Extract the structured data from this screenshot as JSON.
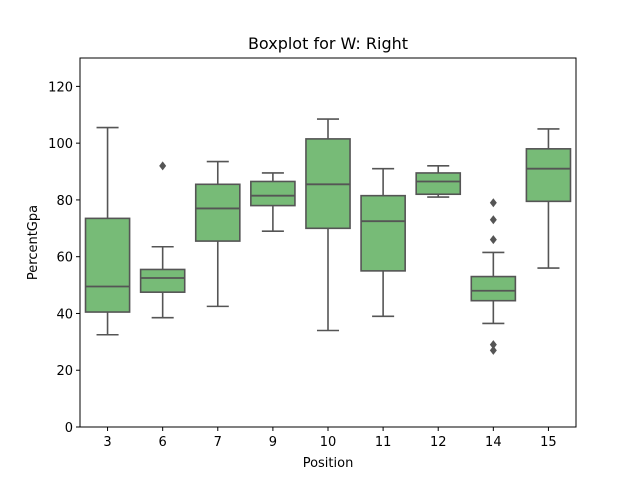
{
  "chart_data": {
    "type": "boxplot",
    "title": "Boxplot for W: Right",
    "xlabel": "Position",
    "ylabel": "PercentGpa",
    "ylim": [
      0,
      130
    ],
    "yticks": [
      0,
      20,
      40,
      60,
      80,
      100,
      120
    ],
    "grid": false,
    "legend": "none",
    "colors": {
      "box_fill": "#77bb77",
      "line": "#555555"
    },
    "categories": [
      "3",
      "6",
      "7",
      "9",
      "10",
      "11",
      "12",
      "14",
      "15"
    ],
    "boxes": [
      {
        "category": "3",
        "whislo": 32.5,
        "q1": 40.5,
        "median": 49.5,
        "q3": 73.5,
        "whishi": 105.5,
        "fliers": []
      },
      {
        "category": "6",
        "whislo": 38.5,
        "q1": 47.5,
        "median": 52.5,
        "q3": 55.5,
        "whishi": 63.5,
        "fliers": [
          92
        ]
      },
      {
        "category": "7",
        "whislo": 42.5,
        "q1": 65.5,
        "median": 77.0,
        "q3": 85.5,
        "whishi": 93.5,
        "fliers": []
      },
      {
        "category": "9",
        "whislo": 69.0,
        "q1": 78.0,
        "median": 81.5,
        "q3": 86.5,
        "whishi": 89.5,
        "fliers": []
      },
      {
        "category": "10",
        "whislo": 34.0,
        "q1": 70.0,
        "median": 85.5,
        "q3": 101.5,
        "whishi": 108.5,
        "fliers": []
      },
      {
        "category": "11",
        "whislo": 39.0,
        "q1": 55.0,
        "median": 72.5,
        "q3": 81.5,
        "whishi": 91.0,
        "fliers": []
      },
      {
        "category": "12",
        "whislo": 81.0,
        "q1": 82.0,
        "median": 86.5,
        "q3": 89.5,
        "whishi": 92.0,
        "fliers": []
      },
      {
        "category": "14",
        "whislo": 36.5,
        "q1": 44.5,
        "median": 48.0,
        "q3": 53.0,
        "whishi": 61.5,
        "fliers": [
          79,
          73,
          66,
          29,
          27
        ]
      },
      {
        "category": "15",
        "whislo": 56.0,
        "q1": 79.5,
        "median": 91.0,
        "q3": 98.0,
        "whishi": 105.0,
        "fliers": []
      }
    ]
  }
}
